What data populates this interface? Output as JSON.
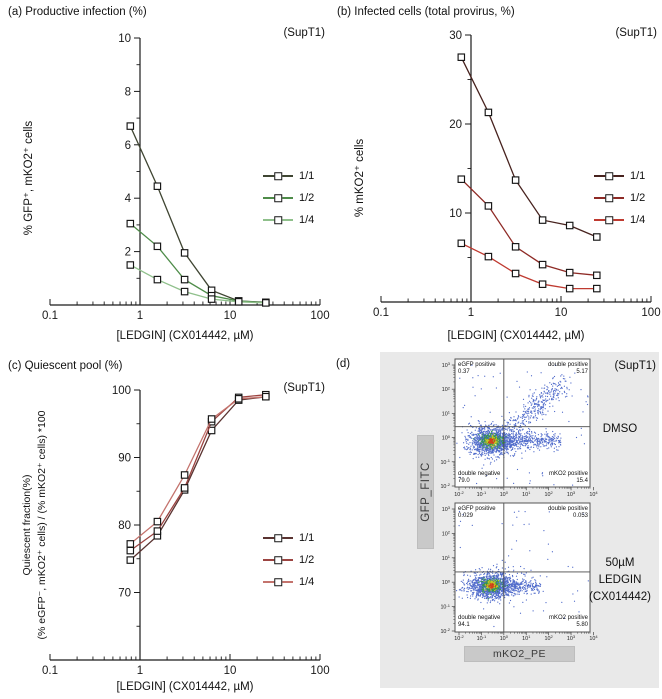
{
  "panel_a": {
    "title": "(a) Productive infection (%)",
    "annotation": "(SupT1)",
    "xlabel": "[LEDGIN] (CX014442, µM)",
    "ylabel": "% GFP⁺, mKO2⁺ cells"
  },
  "panel_b": {
    "title": "(b) Infected cells (total provirus, %)",
    "annotation": "(SupT1)",
    "xlabel": "[LEDGIN] (CX014442, µM)",
    "ylabel": "% mKO2⁺ cells"
  },
  "panel_c": {
    "title": "(c) Quiescent pool (%)",
    "annotation": "(SupT1)",
    "xlabel": "[LEDGIN] (CX014442, µM)",
    "ylabel_line1": "Quiescent fraction(%)",
    "ylabel_line2": "(% eGFP⁻, mKO2⁺ cells) / (% mKO2⁺ cells) *100"
  },
  "panel_d": {
    "label": "(d)",
    "annotation": "(SupT1)",
    "y_axis_bar": "GFP_FITC",
    "x_axis_bar": "mKO2_PE",
    "plots": [
      {
        "condition_lines": [
          "DMSO"
        ],
        "quadrants": {
          "tl_label": "eGFP positive",
          "tl_value": "0.37",
          "tr_label": "double positive",
          "tr_value": "5.17",
          "bl_label": "double negative",
          "bl_value": "79.0",
          "br_label": "mKO2 positive",
          "br_value": "15.4"
        }
      },
      {
        "condition_lines": [
          "50µM",
          "LEDGIN",
          "(CX014442)"
        ],
        "quadrants": {
          "tl_label": "eGFP positive",
          "tl_value": "0.029",
          "tr_label": "double positive",
          "tr_value": "0.053",
          "bl_label": "double negative",
          "bl_value": "94.1",
          "br_label": "mKO2 positive",
          "br_value": "5.80"
        }
      }
    ]
  },
  "chart_data": [
    {
      "type": "line",
      "panel": "a",
      "title": "(a) Productive infection (%)",
      "xlabel": "[LEDGIN] (CX014442, µM)",
      "ylabel": "% GFP⁺, mKO2⁺ cells",
      "xscale": "log",
      "xlim": [
        0.1,
        100
      ],
      "ylim": [
        0,
        10
      ],
      "xtick_values": [
        0.1,
        1,
        10,
        100
      ],
      "xtick_labels": [
        "0.1",
        "1",
        "10",
        "100"
      ],
      "yticks": [
        2,
        4,
        6,
        8,
        10
      ],
      "yminor": [
        1,
        3,
        5,
        7,
        9
      ],
      "x": [
        0.78,
        1.56,
        3.13,
        6.25,
        12.5,
        25
      ],
      "series": [
        {
          "name": "1/1",
          "color": "#3f4532",
          "values": [
            6.7,
            4.45,
            1.95,
            0.55,
            0.15,
            0.1
          ]
        },
        {
          "name": "1/2",
          "color": "#4e8c49",
          "values": [
            3.05,
            2.2,
            0.95,
            0.35,
            0.15,
            0.09
          ]
        },
        {
          "name": "1/4",
          "color": "#8fc08b",
          "values": [
            1.5,
            0.95,
            0.5,
            0.22,
            0.12,
            0.08
          ]
        }
      ]
    },
    {
      "type": "line",
      "panel": "b",
      "title": "(b) Infected cells (total provirus, %)",
      "xlabel": "[LEDGIN] (CX014442, µM)",
      "ylabel": "% mKO2⁺ cells",
      "xscale": "log",
      "xlim": [
        0.1,
        100
      ],
      "ylim": [
        0,
        30
      ],
      "xtick_values": [
        0.1,
        1,
        10,
        100
      ],
      "xtick_labels": [
        "0.1",
        "1",
        "10",
        "100"
      ],
      "yticks": [
        10,
        20,
        30
      ],
      "yminor": [
        5,
        15,
        25
      ],
      "x": [
        0.78,
        1.56,
        3.13,
        6.25,
        12.5,
        25
      ],
      "series": [
        {
          "name": "1/1",
          "color": "#47221e",
          "values": [
            27.5,
            21.3,
            13.7,
            9.2,
            8.6,
            7.3
          ]
        },
        {
          "name": "1/2",
          "color": "#8e2a25",
          "values": [
            13.8,
            10.8,
            6.2,
            4.2,
            3.3,
            3.0
          ]
        },
        {
          "name": "1/4",
          "color": "#bf3a30",
          "values": [
            6.6,
            5.1,
            3.2,
            2.0,
            1.5,
            1.5
          ]
        }
      ]
    },
    {
      "type": "line",
      "panel": "c",
      "title": "(c) Quiescent pool (%)",
      "xlabel": "[LEDGIN] (CX014442, µM)",
      "ylabel": "Quiescent fraction(%) (% eGFP⁻, mKO2⁺ cells) / (% mKO2⁺ cells) *100",
      "xscale": "log",
      "xlim": [
        0.1,
        100
      ],
      "ylim": [
        60,
        100
      ],
      "xtick_values": [
        0.1,
        1,
        10,
        100
      ],
      "xtick_labels": [
        "0.1",
        "1",
        "10",
        "100"
      ],
      "yticks": [
        70,
        80,
        90,
        100
      ],
      "yminor": [
        65,
        75,
        85,
        95
      ],
      "x": [
        0.78,
        1.56,
        3.13,
        6.25,
        12.5,
        25
      ],
      "series": [
        {
          "name": "1/1",
          "color": "#5a3331",
          "values": [
            74.8,
            78.4,
            85.2,
            94.0,
            98.5,
            99.0
          ]
        },
        {
          "name": "1/2",
          "color": "#9c4441",
          "values": [
            76.2,
            79.1,
            85.5,
            95.3,
            98.9,
            99.3
          ]
        },
        {
          "name": "1/4",
          "color": "#c4736d",
          "values": [
            77.2,
            80.5,
            87.4,
            95.7,
            98.7,
            99.0
          ]
        }
      ]
    },
    {
      "type": "scatter",
      "panel": "d",
      "subtitle": "DMSO",
      "xlabel": "mKO2_PE",
      "ylabel": "GFP_FITC",
      "xticks_exp": [
        -2,
        -1,
        0,
        1,
        2,
        3,
        4
      ],
      "yticks_exp": [
        3,
        2,
        1,
        0,
        -1,
        -2
      ],
      "quadrant_x_exp": 0,
      "quadrant_y_exp": 0.45,
      "populations": [
        {
          "kind": "gauss",
          "n": 1200,
          "cx": -0.55,
          "cy": -0.15,
          "sx": 0.52,
          "sy": 0.3,
          "color": "blue"
        },
        {
          "kind": "smear",
          "n": 420,
          "x0": -0.05,
          "len": 2.6,
          "cy": -0.12,
          "sy": 0.17,
          "color": "blue"
        },
        {
          "kind": "diag",
          "n": 330,
          "x0": 0.35,
          "y0": 0.3,
          "dx": 2.3,
          "dy": 2.0,
          "s": 0.33,
          "color": "blue"
        },
        {
          "kind": "uniform",
          "n": 85,
          "color": "blue"
        },
        {
          "kind": "gauss",
          "n": 250,
          "cx": -0.55,
          "cy": -0.13,
          "sx": 0.26,
          "sy": 0.15,
          "color": "green"
        },
        {
          "kind": "gauss",
          "n": 110,
          "cx": -0.55,
          "cy": -0.13,
          "sx": 0.15,
          "sy": 0.09,
          "color": "yellow"
        },
        {
          "kind": "gauss",
          "n": 45,
          "cx": -0.55,
          "cy": -0.13,
          "sx": 0.08,
          "sy": 0.05,
          "color": "red"
        }
      ]
    },
    {
      "type": "scatter",
      "panel": "d",
      "subtitle": "50µM LEDGIN (CX014442)",
      "xlabel": "mKO2_PE",
      "ylabel": "GFP_FITC",
      "xticks_exp": [
        -2,
        -1,
        0,
        1,
        2,
        3,
        4
      ],
      "yticks_exp": [
        3,
        2,
        1,
        0,
        -1,
        -2
      ],
      "quadrant_x_exp": 0,
      "quadrant_y_exp": 0.42,
      "populations": [
        {
          "kind": "gauss",
          "n": 1200,
          "cx": -0.55,
          "cy": -0.15,
          "sx": 0.5,
          "sy": 0.28,
          "color": "blue"
        },
        {
          "kind": "smear",
          "n": 260,
          "x0": -0.05,
          "len": 1.7,
          "cy": -0.15,
          "sy": 0.15,
          "color": "blue"
        },
        {
          "kind": "gauss",
          "n": 14,
          "cx": 0.15,
          "cy": 0.55,
          "sx": 0.3,
          "sy": 0.25,
          "color": "blue"
        },
        {
          "kind": "uniform",
          "n": 55,
          "color": "blue"
        },
        {
          "kind": "gauss",
          "n": 250,
          "cx": -0.55,
          "cy": -0.14,
          "sx": 0.25,
          "sy": 0.14,
          "color": "green"
        },
        {
          "kind": "gauss",
          "n": 110,
          "cx": -0.55,
          "cy": -0.14,
          "sx": 0.15,
          "sy": 0.09,
          "color": "yellow"
        },
        {
          "kind": "gauss",
          "n": 45,
          "cx": -0.55,
          "cy": -0.14,
          "sx": 0.08,
          "sy": 0.05,
          "color": "red"
        }
      ]
    }
  ]
}
